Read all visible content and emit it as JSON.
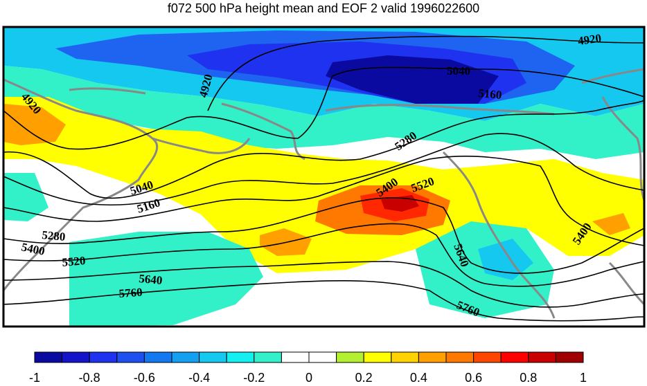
{
  "title": "f072 500 hPa height mean and EOF 2 valid 1996022600",
  "colorbar": {
    "colors": [
      "#0a0aa0",
      "#1414c8",
      "#1e32f0",
      "#1e50f0",
      "#1478f0",
      "#14a0f0",
      "#14c8f0",
      "#14f0f0",
      "#32f0c8",
      "#ffffff",
      "#ffffff",
      "#b4f032",
      "#ffff00",
      "#ffd200",
      "#ffa000",
      "#ff7800",
      "#ff4600",
      "#ff0000",
      "#c80000",
      "#a00000"
    ],
    "tick_labels": [
      "-1",
      "-0.8",
      "-0.6",
      "-0.4",
      "-0.2",
      "0",
      "0.2",
      "0.4",
      "0.6",
      "0.8",
      "1"
    ]
  },
  "contour_labels": [
    "4920",
    "4920",
    "4920",
    "5040",
    "5160",
    "5280",
    "5400",
    "5520",
    "5040",
    "5160",
    "5280",
    "5400",
    "5520",
    "5640",
    "5760",
    "5640",
    "5760",
    "5400"
  ]
}
